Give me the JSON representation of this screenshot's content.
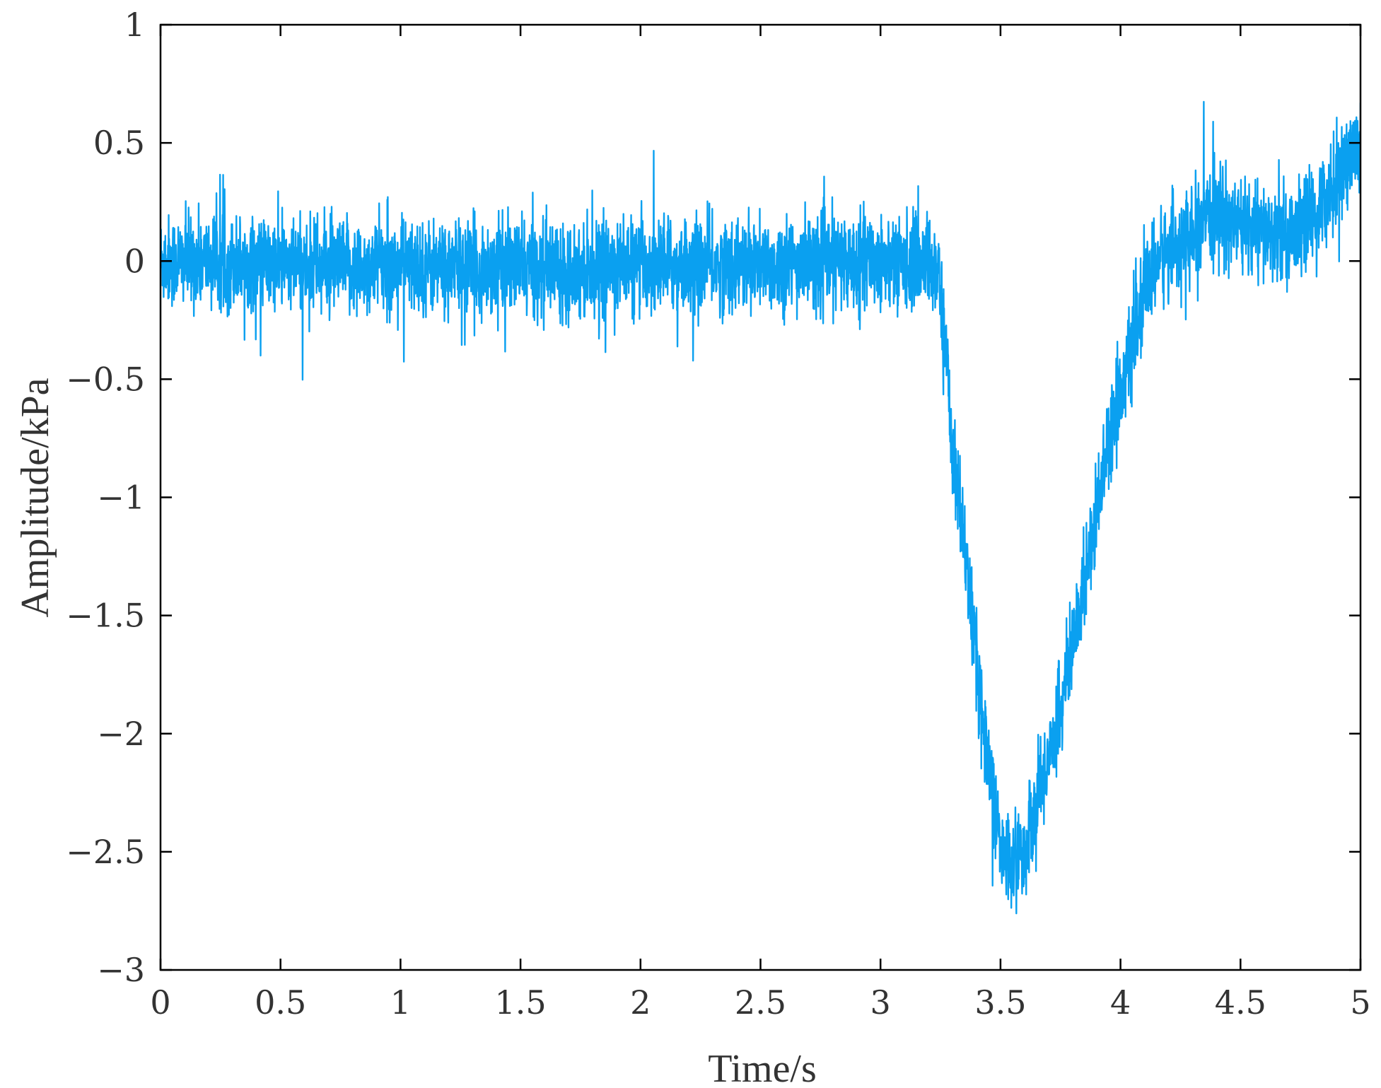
{
  "chart_data": {
    "type": "line",
    "title": "",
    "xlabel": "Time/s",
    "ylabel": "Amplitude/kPa",
    "xlim": [
      0,
      5
    ],
    "ylim": [
      -3,
      1
    ],
    "grid": false,
    "legend": "none",
    "colors": {
      "line": "#0aa0f0",
      "axis": "#000000",
      "text": "#333333"
    },
    "x_ticks": [
      0,
      0.5,
      1,
      1.5,
      2,
      2.5,
      3,
      3.5,
      4,
      4.5,
      5
    ],
    "x_tick_labels": [
      "0",
      "0.5",
      "1",
      "1.5",
      "2",
      "2.5",
      "3",
      "3.5",
      "4",
      "4.5",
      "5"
    ],
    "y_ticks": [
      1,
      0.5,
      0,
      -0.5,
      -1,
      -1.5,
      -2,
      -2.5,
      -3
    ],
    "y_tick_labels": [
      "1",
      "0.5",
      "0",
      "−0.5",
      "−1",
      "−1.5",
      "−2",
      "−2.5",
      "−3"
    ],
    "series": [
      {
        "noise_amplitude_kpa": 0.12,
        "x": [
          0,
          0.25,
          0.5,
          0.75,
          1.0,
          1.25,
          1.5,
          1.75,
          2.0,
          2.25,
          2.5,
          2.75,
          3.0,
          3.2,
          3.24,
          3.27,
          3.3,
          3.35,
          3.4,
          3.45,
          3.5,
          3.55,
          3.6,
          3.65,
          3.7,
          3.75,
          3.8,
          3.85,
          3.9,
          3.95,
          4.0,
          4.05,
          4.1,
          4.15,
          4.2,
          4.3,
          4.4,
          4.5,
          4.6,
          4.7,
          4.8,
          4.9,
          5.0
        ],
        "y": [
          0.0,
          0.0,
          -0.02,
          -0.03,
          -0.02,
          -0.03,
          -0.02,
          -0.03,
          -0.02,
          -0.02,
          -0.02,
          -0.01,
          0.0,
          0.0,
          -0.05,
          -0.35,
          -0.8,
          -1.2,
          -1.7,
          -2.1,
          -2.5,
          -2.55,
          -2.5,
          -2.3,
          -2.1,
          -1.9,
          -1.65,
          -1.35,
          -1.05,
          -0.75,
          -0.55,
          -0.35,
          -0.15,
          0.0,
          0.05,
          0.1,
          0.2,
          0.15,
          0.12,
          0.1,
          0.18,
          0.35,
          0.5
        ]
      }
    ]
  }
}
